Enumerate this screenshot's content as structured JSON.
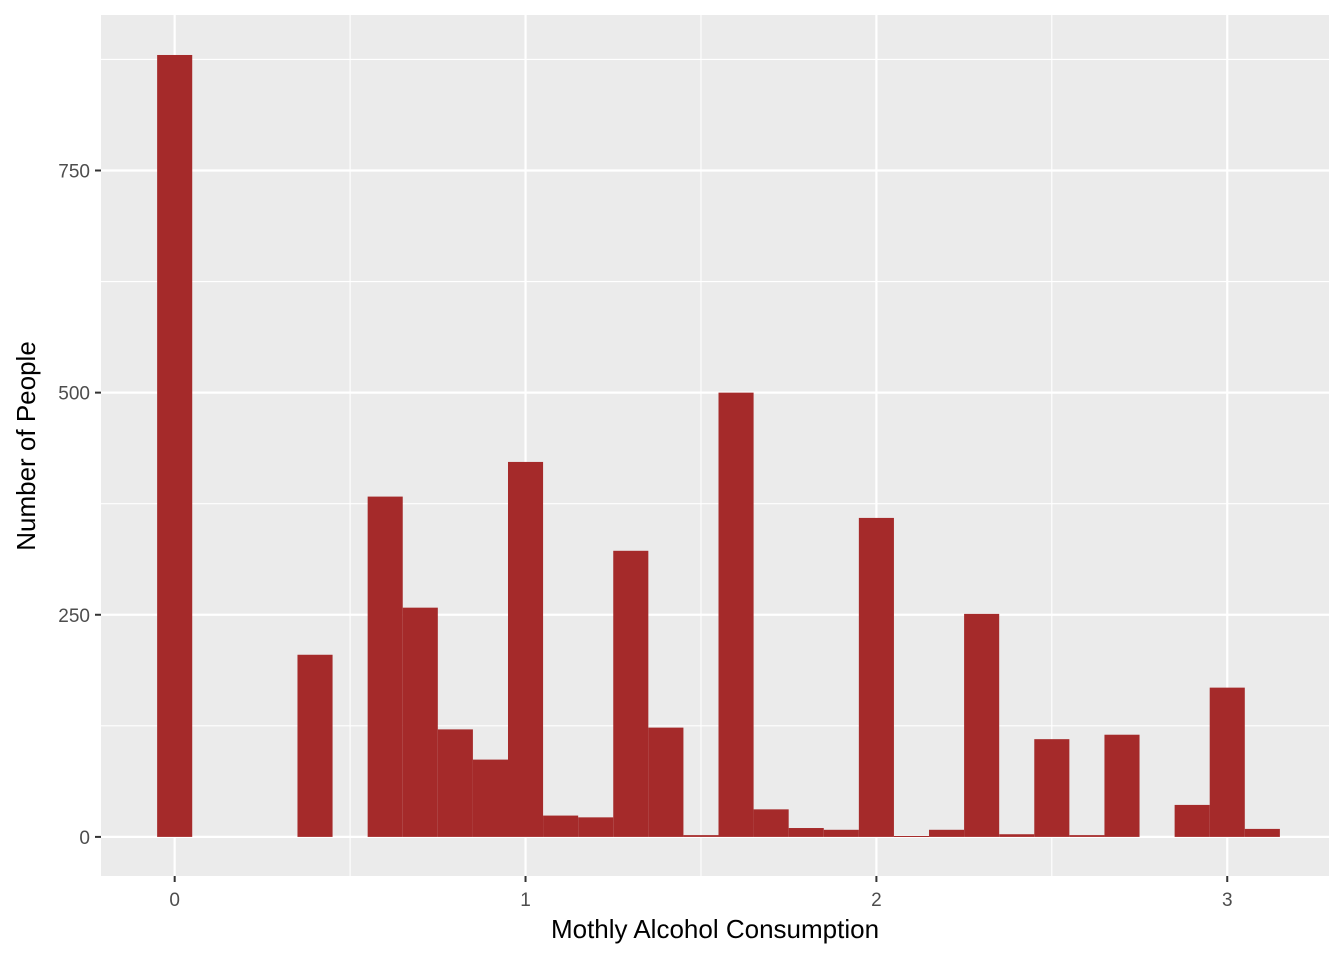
{
  "chart_data": {
    "type": "bar",
    "title": "",
    "xlabel": "Mothly Alcohol Consumption",
    "ylabel": "Number of People",
    "xlim": [
      -0.21,
      3.29
    ],
    "ylim": [
      -44,
      925
    ],
    "grid": true,
    "x_ticks": [
      0,
      1,
      2,
      3
    ],
    "x_tick_labels": [
      "0",
      "1",
      "2",
      "3"
    ],
    "y_ticks": [
      0,
      250,
      500,
      750
    ],
    "y_tick_labels": [
      "0",
      "250",
      "500",
      "750"
    ],
    "bin_width": 0.1,
    "bins": [
      {
        "x": 0.0,
        "count": 880
      },
      {
        "x": 0.1,
        "count": 0
      },
      {
        "x": 0.2,
        "count": 0
      },
      {
        "x": 0.3,
        "count": 0
      },
      {
        "x": 0.4,
        "count": 205
      },
      {
        "x": 0.5,
        "count": 0
      },
      {
        "x": 0.6,
        "count": 383
      },
      {
        "x": 0.7,
        "count": 258
      },
      {
        "x": 0.8,
        "count": 121
      },
      {
        "x": 0.9,
        "count": 87
      },
      {
        "x": 1.0,
        "count": 422
      },
      {
        "x": 1.1,
        "count": 24
      },
      {
        "x": 1.2,
        "count": 22
      },
      {
        "x": 1.3,
        "count": 322
      },
      {
        "x": 1.4,
        "count": 123
      },
      {
        "x": 1.5,
        "count": 2
      },
      {
        "x": 1.6,
        "count": 500
      },
      {
        "x": 1.7,
        "count": 31
      },
      {
        "x": 1.8,
        "count": 10
      },
      {
        "x": 1.9,
        "count": 8
      },
      {
        "x": 2.0,
        "count": 359
      },
      {
        "x": 2.1,
        "count": 1
      },
      {
        "x": 2.2,
        "count": 8
      },
      {
        "x": 2.3,
        "count": 251
      },
      {
        "x": 2.4,
        "count": 3
      },
      {
        "x": 2.5,
        "count": 110
      },
      {
        "x": 2.6,
        "count": 2
      },
      {
        "x": 2.7,
        "count": 115
      },
      {
        "x": 2.8,
        "count": 0
      },
      {
        "x": 2.9,
        "count": 36
      },
      {
        "x": 3.0,
        "count": 168
      },
      {
        "x": 3.1,
        "count": 9
      }
    ],
    "colors": {
      "bar": "#a52a2a",
      "panel": "#ebebeb",
      "grid": "#ffffff",
      "tick": "#333333"
    }
  }
}
